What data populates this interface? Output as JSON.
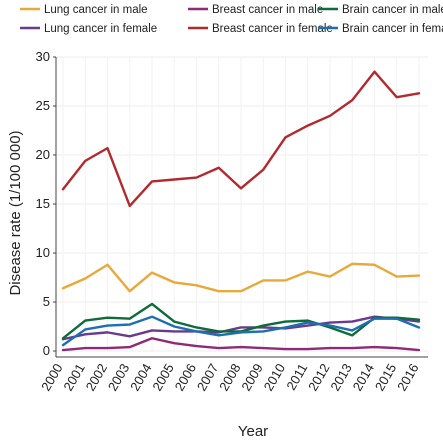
{
  "chart_data": {
    "type": "line",
    "title": "",
    "xlabel": "Year",
    "ylabel": "Disease rate (1/100 000)",
    "ylim": [
      0,
      30
    ],
    "yticks": [
      0,
      5,
      10,
      15,
      20,
      25,
      30
    ],
    "grid": true,
    "legend_placement": "top",
    "x": [
      "2000",
      "2001",
      "2002",
      "2003",
      "2004",
      "2005",
      "2006",
      "2007",
      "2008",
      "2009",
      "2010",
      "2011",
      "2012",
      "2013",
      "2014",
      "2015",
      "2016"
    ],
    "series": [
      {
        "name": "Lung cancer in male",
        "color": "#E8A93A",
        "values": [
          6.4,
          7.4,
          8.8,
          6.1,
          8.0,
          7.0,
          6.7,
          6.1,
          6.1,
          7.2,
          7.2,
          8.1,
          7.6,
          8.9,
          8.8,
          7.6,
          7.7
        ]
      },
      {
        "name": "Lung cancer in female",
        "color": "#6B3A8E",
        "values": [
          1.2,
          1.7,
          1.9,
          1.5,
          2.1,
          2.0,
          2.0,
          1.9,
          2.4,
          2.4,
          2.3,
          2.6,
          2.9,
          3.0,
          3.5,
          3.3,
          3.0
        ]
      },
      {
        "name": "Breast cancer in male",
        "color": "#8E2A78",
        "values": [
          0.1,
          0.3,
          0.3,
          0.4,
          1.3,
          0.8,
          0.5,
          0.3,
          0.4,
          0.3,
          0.2,
          0.2,
          0.3,
          0.3,
          0.4,
          0.3,
          0.1
        ]
      },
      {
        "name": "Breast cancer in female",
        "color": "#B22A30",
        "values": [
          16.5,
          19.4,
          20.7,
          14.8,
          17.3,
          17.5,
          17.7,
          18.7,
          16.6,
          18.5,
          21.8,
          23.0,
          24.0,
          25.6,
          28.5,
          25.9,
          26.3
        ]
      },
      {
        "name": "Brain cancer in male",
        "color": "#0E6B3A",
        "values": [
          1.3,
          3.1,
          3.4,
          3.3,
          4.8,
          3.0,
          2.4,
          2.0,
          2.0,
          2.6,
          3.0,
          3.1,
          2.4,
          1.6,
          3.4,
          3.4,
          3.2
        ]
      },
      {
        "name": "Brain cancer in female",
        "color": "#1E6FB0",
        "values": [
          0.6,
          2.2,
          2.6,
          2.7,
          3.5,
          2.5,
          2.0,
          1.6,
          1.9,
          2.0,
          2.4,
          2.9,
          2.6,
          2.1,
          3.3,
          3.3,
          2.4
        ]
      }
    ]
  }
}
